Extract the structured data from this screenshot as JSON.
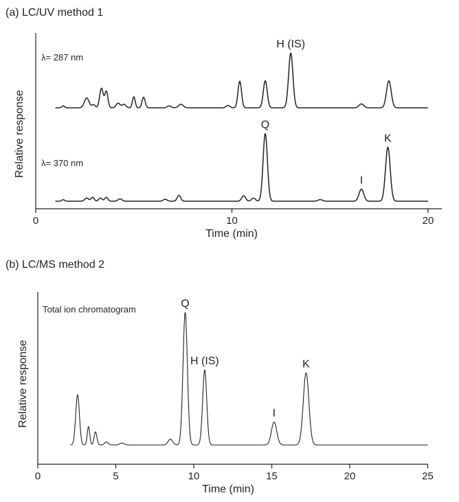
{
  "chart_data": [
    {
      "type": "line",
      "title": "(a) LC/UV method 1",
      "xlabel": "Time (min)",
      "ylabel": "Relative response",
      "xlim": [
        0,
        20.4
      ],
      "xticks": [
        0,
        10,
        20
      ],
      "grid": false,
      "series": [
        {
          "name": "λ= 287 nm",
          "baseline": 0,
          "peaks": [
            {
              "t": 1.4,
              "h": 0.05,
              "w": 0.07
            },
            {
              "t": 2.6,
              "h": 0.25,
              "w": 0.12
            },
            {
              "t": 2.95,
              "h": 0.08,
              "w": 0.08
            },
            {
              "t": 3.35,
              "h": 0.5,
              "w": 0.09
            },
            {
              "t": 3.6,
              "h": 0.42,
              "w": 0.08
            },
            {
              "t": 4.2,
              "h": 0.12,
              "w": 0.1
            },
            {
              "t": 4.5,
              "h": 0.09,
              "w": 0.1
            },
            {
              "t": 5.0,
              "h": 0.28,
              "w": 0.07
            },
            {
              "t": 5.5,
              "h": 0.27,
              "w": 0.08
            },
            {
              "t": 6.8,
              "h": 0.05,
              "w": 0.1
            },
            {
              "t": 7.4,
              "h": 0.09,
              "w": 0.12
            },
            {
              "t": 9.8,
              "h": 0.06,
              "w": 0.1
            },
            {
              "t": 10.4,
              "h": 0.68,
              "w": 0.09
            },
            {
              "t": 11.7,
              "h": 0.69,
              "w": 0.1
            },
            {
              "t": 13.0,
              "h": 1.4,
              "w": 0.11
            },
            {
              "t": 16.6,
              "h": 0.1,
              "w": 0.12
            },
            {
              "t": 18.0,
              "h": 0.69,
              "w": 0.12
            }
          ],
          "labels": [
            {
              "t": 13.0,
              "text": "H (IS)"
            }
          ]
        },
        {
          "name": "λ= 370 nm",
          "baseline": 0,
          "peaks": [
            {
              "t": 1.4,
              "h": 0.04,
              "w": 0.07
            },
            {
              "t": 2.6,
              "h": 0.08,
              "w": 0.1
            },
            {
              "t": 2.9,
              "h": 0.1,
              "w": 0.08
            },
            {
              "t": 3.3,
              "h": 0.08,
              "w": 0.09
            },
            {
              "t": 3.6,
              "h": 0.1,
              "w": 0.08
            },
            {
              "t": 4.3,
              "h": 0.06,
              "w": 0.1
            },
            {
              "t": 6.6,
              "h": 0.05,
              "w": 0.1
            },
            {
              "t": 7.3,
              "h": 0.15,
              "w": 0.09
            },
            {
              "t": 10.6,
              "h": 0.14,
              "w": 0.1
            },
            {
              "t": 11.1,
              "h": 0.08,
              "w": 0.1
            },
            {
              "t": 11.7,
              "h": 1.73,
              "w": 0.11
            },
            {
              "t": 14.5,
              "h": 0.04,
              "w": 0.12
            },
            {
              "t": 16.6,
              "h": 0.31,
              "w": 0.12
            },
            {
              "t": 17.95,
              "h": 1.38,
              "w": 0.12
            }
          ],
          "labels": [
            {
              "t": 11.7,
              "text": "Q"
            },
            {
              "t": 16.6,
              "text": "I"
            },
            {
              "t": 17.95,
              "text": "K"
            }
          ]
        }
      ]
    },
    {
      "type": "line",
      "title": "(b) LC/MS method 2",
      "xlabel": "Time (min)",
      "ylabel": "Relative response",
      "xlim": [
        0,
        25
      ],
      "xticks": [
        0,
        5,
        10,
        15,
        20,
        25
      ],
      "grid": false,
      "series": [
        {
          "name": "Total ion chromatogram",
          "start": 2.1,
          "end": 25,
          "baseline": 0,
          "peaks": [
            {
              "t": 2.55,
              "h": 1.03,
              "w": 0.12
            },
            {
              "t": 3.25,
              "h": 0.38,
              "w": 0.08
            },
            {
              "t": 3.7,
              "h": 0.27,
              "w": 0.09
            },
            {
              "t": 4.4,
              "h": 0.06,
              "w": 0.12
            },
            {
              "t": 5.4,
              "h": 0.04,
              "w": 0.15
            },
            {
              "t": 8.5,
              "h": 0.12,
              "w": 0.15
            },
            {
              "t": 9.45,
              "h": 2.72,
              "w": 0.14
            },
            {
              "t": 10.7,
              "h": 1.54,
              "w": 0.13
            },
            {
              "t": 15.15,
              "h": 0.47,
              "w": 0.17
            },
            {
              "t": 17.2,
              "h": 1.48,
              "w": 0.18
            }
          ],
          "labels": [
            {
              "t": 9.45,
              "text": "Q"
            },
            {
              "t": 10.7,
              "text": "H (IS)"
            },
            {
              "t": 15.15,
              "text": "I"
            },
            {
              "t": 17.2,
              "text": "K"
            }
          ]
        }
      ]
    }
  ]
}
